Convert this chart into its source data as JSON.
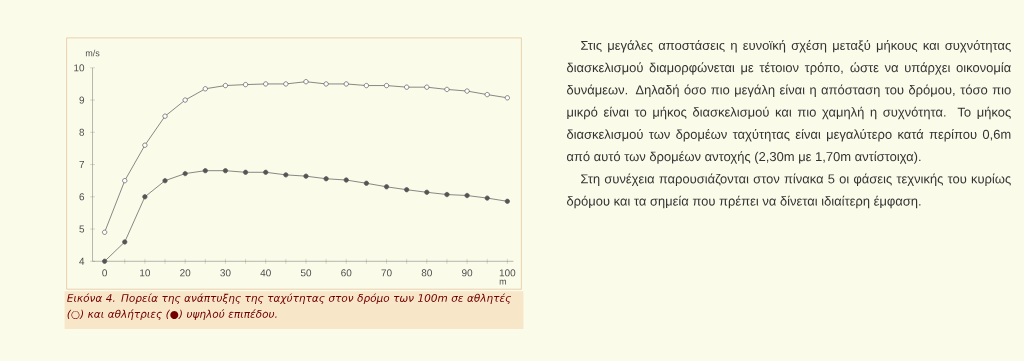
{
  "chart_data": {
    "type": "line",
    "title": "Εικόνα 4. Πορεία της ανάπτυξης της ταχύτητας στον δρόμο των 100m σε αθλητές (○) και αθλήτριες (●) υψηλού επιπέδου.",
    "xlabel": "m",
    "ylabel": "m/s",
    "x": [
      0,
      5,
      10,
      15,
      20,
      25,
      30,
      35,
      40,
      45,
      50,
      55,
      60,
      65,
      70,
      75,
      80,
      85,
      90,
      95,
      100
    ],
    "series": [
      {
        "color": "#555555",
        "values": [
          4.9,
          6.5,
          7.6,
          8.5,
          9.0,
          9.35,
          9.45,
          9.48,
          9.5,
          9.5,
          9.57,
          9.5,
          9.5,
          9.45,
          9.45,
          9.4,
          9.4,
          9.33,
          9.28,
          9.17,
          9.07
        ]
      },
      {
        "color": "#555555",
        "values": [
          4.0,
          4.6,
          6.0,
          6.5,
          6.72,
          6.81,
          6.81,
          6.76,
          6.76,
          6.68,
          6.64,
          6.56,
          6.52,
          6.42,
          6.31,
          6.22,
          6.14,
          6.07,
          6.04,
          5.96,
          5.86
        ]
      }
    ],
    "xlim": [
      -3,
      101.5
    ],
    "ylim": [
      4,
      10
    ],
    "xticks": [
      0,
      {
        "value": 5,
        "label": null
      },
      10,
      {
        "value": 15,
        "label": null
      },
      20,
      {
        "value": 25,
        "label": null
      },
      30,
      {
        "value": 35,
        "label": null
      },
      40,
      {
        "value": 45,
        "label": null
      },
      50,
      {
        "value": 55,
        "label": null
      },
      60,
      {
        "value": 65,
        "label": null
      },
      70,
      {
        "value": 75,
        "label": null
      },
      80,
      {
        "value": 85,
        "label": null
      },
      90,
      {
        "value": 95,
        "label": null
      },
      100
    ],
    "yticks": [
      4,
      5,
      6,
      7,
      8,
      9,
      10
    ],
    "marker": "circle",
    "grid": false,
    "annotations": [
      "Στις μεγάλες αποστάσεις η ευνοϊκή σχέση μεταξύ μήκους και συχνότητας διασκελισμού διαμορφώνεται με τέτοιον τρόπο, ώστε να υπάρχει οικονομία δυνάμεων. Δηλαδή όσο πιο μεγάλη είναι η απόσταση του δρόμου, τόσο πιο μικρό είναι το μήκος διασκελισμού και πιο χαμηλή η συχνότητα. Το μήκος διασκελισμού των δρομέων ταχύτητας είναι μεγαλύτερο κατά περίπου 0,6m από αυτό των δρομέων αντοχής (2,30m με 1,70m αντίστοιχα).",
      "Στη συνέχεια παρουσιάζονται στον πίνακα 5 οι φάσεις τεχνικής του κυρίως δρόμου και τα σημεία που πρέπει να δίνεται ιδιαίτερη έμφαση."
    ]
  }
}
